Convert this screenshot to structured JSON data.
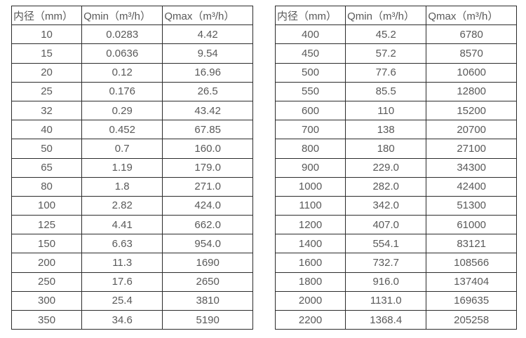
{
  "colors": {
    "background": "#ffffff",
    "text": "#595959",
    "border": "#2b2b2b"
  },
  "table_left": {
    "headers": [
      "内径（mm）",
      "Qmin（m³/h）",
      "Qmax（m³/h）"
    ],
    "rows": [
      [
        "10",
        "0.0283",
        "4.42"
      ],
      [
        "15",
        "0.0636",
        "9.54"
      ],
      [
        "20",
        "0.12",
        "16.96"
      ],
      [
        "25",
        "0.176",
        "26.5"
      ],
      [
        "32",
        "0.29",
        "43.42"
      ],
      [
        "40",
        "0.452",
        "67.85"
      ],
      [
        "50",
        "0.7",
        "160.0"
      ],
      [
        "65",
        "1.19",
        "179.0"
      ],
      [
        "80",
        "1.8",
        "271.0"
      ],
      [
        "100",
        "2.82",
        "424.0"
      ],
      [
        "125",
        "4.41",
        "662.0"
      ],
      [
        "150",
        "6.63",
        "954.0"
      ],
      [
        "200",
        "11.3",
        "1690"
      ],
      [
        "250",
        "17.6",
        "2650"
      ],
      [
        "300",
        "25.4",
        "3810"
      ],
      [
        "350",
        "34.6",
        "5190"
      ]
    ]
  },
  "table_right": {
    "headers": [
      "内径（mm）",
      "Qmin（m³/h）",
      "Qmax（m³/h）"
    ],
    "rows": [
      [
        "400",
        "45.2",
        "6780"
      ],
      [
        "450",
        "57.2",
        "8570"
      ],
      [
        "500",
        "77.6",
        "10600"
      ],
      [
        "550",
        "85.5",
        "12800"
      ],
      [
        "600",
        "110",
        "15200"
      ],
      [
        "700",
        "138",
        "20700"
      ],
      [
        "800",
        "180",
        "27100"
      ],
      [
        "900",
        "229.0",
        "34300"
      ],
      [
        "1000",
        "282.0",
        "42400"
      ],
      [
        "1100",
        "342.0",
        "51300"
      ],
      [
        "1200",
        "407.0",
        "61000"
      ],
      [
        "1400",
        "554.1",
        "83121"
      ],
      [
        "1600",
        "732.7",
        "108566"
      ],
      [
        "1800",
        "916.0",
        "137404"
      ],
      [
        "2000",
        "1131.0",
        "169635"
      ],
      [
        "2200",
        "1368.4",
        "205258"
      ]
    ]
  }
}
